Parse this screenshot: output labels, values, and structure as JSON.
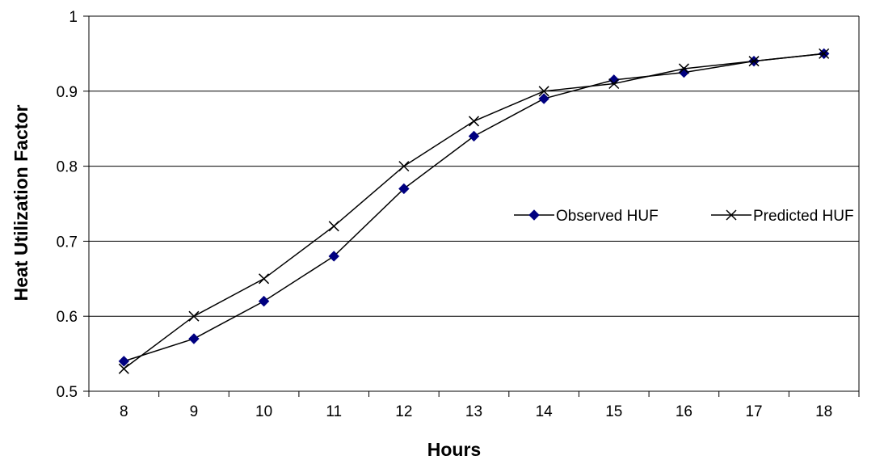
{
  "chart_data": {
    "type": "line",
    "title": "",
    "xlabel": "Hours",
    "ylabel": "Heat Utilization Factor",
    "x": [
      8,
      9,
      10,
      11,
      12,
      13,
      14,
      15,
      16,
      17,
      18
    ],
    "x_tick_labels": [
      "8",
      "9",
      "10",
      "11",
      "12",
      "13",
      "14",
      "15",
      "16",
      "17",
      "18"
    ],
    "ylim": [
      0.5,
      1
    ],
    "y_ticks": [
      0.5,
      0.6,
      0.7,
      0.8,
      0.9,
      1
    ],
    "y_tick_labels": [
      "0.5",
      "0.6",
      "0.7",
      "0.8",
      "0.9",
      "1"
    ],
    "grid": "horizontal",
    "legend_position": "middle-right",
    "series": [
      {
        "name": "Observed HUF",
        "marker": "diamond",
        "color": "#000080",
        "values": [
          0.54,
          0.57,
          0.62,
          0.68,
          0.77,
          0.84,
          0.89,
          0.915,
          0.925,
          0.94,
          0.95
        ]
      },
      {
        "name": "Predicted HUF",
        "marker": "x",
        "color": "#000000",
        "values": [
          0.53,
          0.6,
          0.65,
          0.72,
          0.8,
          0.86,
          0.9,
          0.91,
          0.93,
          0.94,
          0.95
        ]
      }
    ]
  }
}
